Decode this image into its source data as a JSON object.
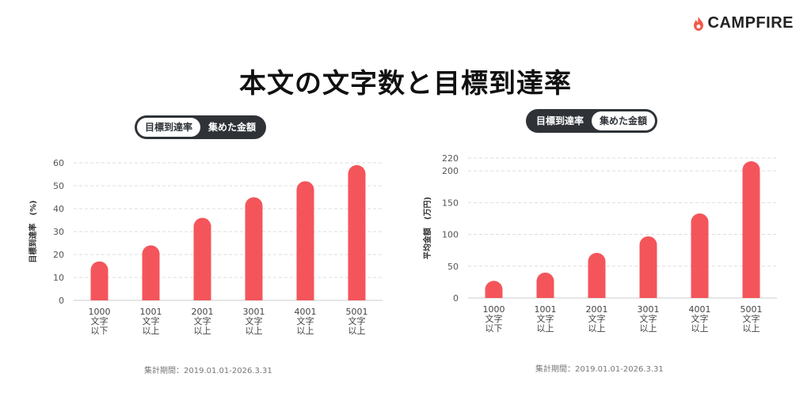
{
  "brand": {
    "name": "CAMPFIRE",
    "logo_icon": "flame-icon",
    "accent": "#f15a4a"
  },
  "title": "本文の文字数と目標到達率",
  "toggles": {
    "left": {
      "options": [
        "目標到達率",
        "集めた金額"
      ],
      "active": 0
    },
    "right": {
      "options": [
        "目標到達率",
        "集めた金額"
      ],
      "active": 1
    }
  },
  "colors": {
    "bar": "#f4555b",
    "grid": "#dddddd",
    "toggle_bg": "#2f3338"
  },
  "period_left": "集計期間：2019.01.01-2026.3.31",
  "period_right": "集計期間：2019.01.01-2026.3.31",
  "chart_data": [
    {
      "type": "bar",
      "categories": [
        [
          "1000",
          "文字",
          "以下"
        ],
        [
          "1001",
          "文字",
          "以上"
        ],
        [
          "2001",
          "文字",
          "以上"
        ],
        [
          "3001",
          "文字",
          "以上"
        ],
        [
          "4001",
          "文字",
          "以上"
        ],
        [
          "5001",
          "文字",
          "以上"
        ]
      ],
      "values": [
        17,
        24,
        36,
        45,
        52,
        59
      ],
      "ylabel": "目標到達率　(%)",
      "ylim": [
        0,
        60
      ],
      "yticks": [
        0,
        10,
        20,
        30,
        40,
        50,
        60
      ],
      "grid": true
    },
    {
      "type": "bar",
      "categories": [
        [
          "1000",
          "文字",
          "以下"
        ],
        [
          "1001",
          "文字",
          "以上"
        ],
        [
          "2001",
          "文字",
          "以上"
        ],
        [
          "3001",
          "文字",
          "以上"
        ],
        [
          "4001",
          "文字",
          "以上"
        ],
        [
          "5001",
          "文字",
          "以上"
        ]
      ],
      "values": [
        27,
        40,
        71,
        97,
        133,
        215
      ],
      "ylabel": "平均金額　(万円)",
      "ylim": [
        0,
        220
      ],
      "yticks": [
        0,
        50,
        100,
        150,
        200,
        220
      ],
      "grid": true
    }
  ]
}
